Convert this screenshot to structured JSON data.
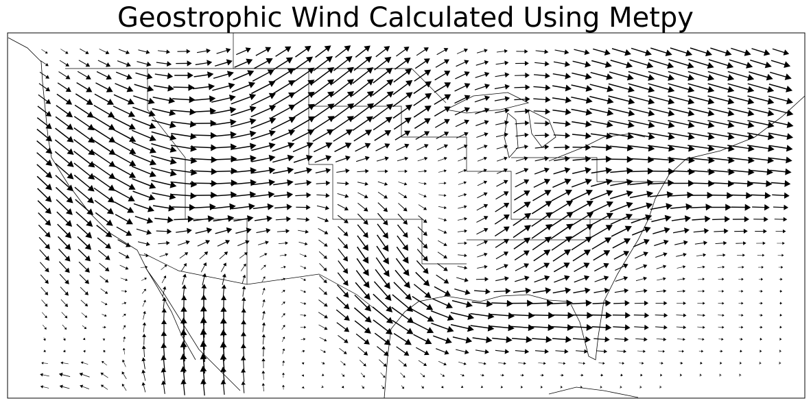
{
  "title": "Geostrophic Wind Calculated Using Metpy",
  "map": {
    "projection": "lat-lon",
    "region": "Contiguous United States, Mexico, Gulf of Mexico",
    "features": [
      "coastlines",
      "state-borders",
      "country-borders"
    ],
    "plot_type": "quiver",
    "arrow_color": "#000000",
    "background": "#ffffff"
  }
}
